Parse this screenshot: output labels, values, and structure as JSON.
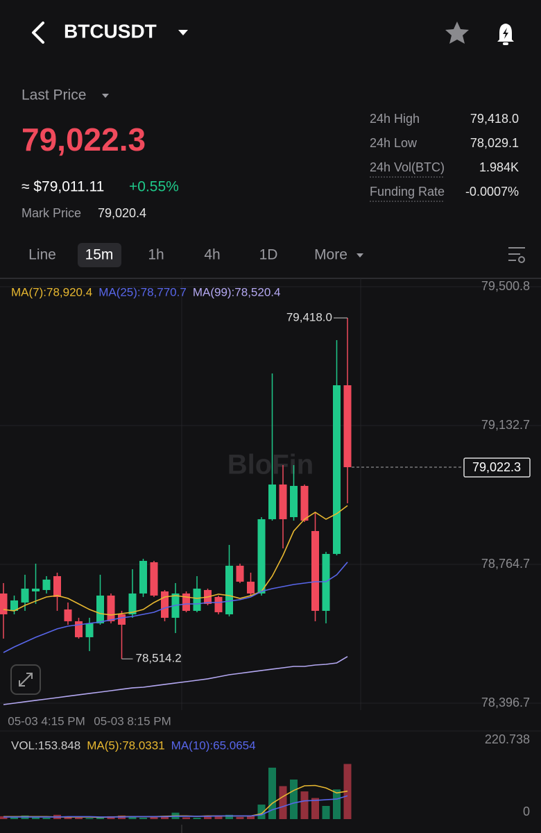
{
  "header": {
    "symbol": "BTCUSDT"
  },
  "ticker": {
    "label": "Last Price",
    "price": "79,022.3",
    "approx": "≈ $79,011.11",
    "change": "+0.55%",
    "mark_label": "Mark Price",
    "mark_price": "79,020.4"
  },
  "stats": [
    {
      "label": "24h High",
      "value": "79,418.0"
    },
    {
      "label": "24h Low",
      "value": "78,029.1"
    },
    {
      "label": "24h Vol(BTC)",
      "value": "1.984K"
    },
    {
      "label": "Funding Rate",
      "value": "-0.0007%"
    }
  ],
  "timeframes": [
    "Line",
    "15m",
    "1h",
    "4h",
    "1D",
    "More"
  ],
  "selected_timeframe": 1,
  "watermark": "BloFin",
  "chart_data": [
    {
      "type": "candlestick",
      "categories": [
        null,
        null,
        null,
        null,
        "05-03 4:15 PM",
        null,
        null,
        null,
        null,
        null,
        null,
        null,
        "05-03 8:15 PM",
        null,
        null,
        null,
        null,
        null,
        null,
        null,
        null,
        null,
        null,
        null,
        null,
        null,
        null,
        null,
        null,
        null,
        null,
        null,
        null
      ],
      "open": [
        78687.5,
        78641.5,
        78663.6,
        78693.0,
        78696.7,
        78733.5,
        78645.2,
        78613.9,
        78571.6,
        78608.4,
        78682.0,
        78632.3,
        78632.3,
        78687.5,
        78770.3,
        78693.0,
        78623.1,
        78687.5,
        78641.5,
        78696.7,
        78678.3,
        78632.3,
        78761.1,
        78718.8,
        78687.5,
        78884.4,
        78976.4,
        78889.9,
        78972.7,
        78853.1,
        78641.5,
        78792.4,
        79239.5
      ],
      "high": [
        78715.1,
        78682.0,
        78737.2,
        78766.6,
        78733.5,
        78742.7,
        78663.6,
        78623.1,
        78623.1,
        78737.2,
        78687.5,
        78641.5,
        78751.9,
        78779.5,
        78774.0,
        78696.7,
        78715.1,
        78693.0,
        78733.5,
        78700.4,
        78682.0,
        78816.3,
        78766.6,
        78742.7,
        78889.9,
        79270.8,
        79027.9,
        79027.9,
        78976.4,
        78902.8,
        78797.9,
        79359.1,
        79418.0
      ],
      "low": [
        78567.9,
        78632.3,
        78641.5,
        78659.9,
        78687.5,
        78641.5,
        78604.7,
        78567.9,
        78534.8,
        78604.7,
        78608.4,
        78514.2,
        78623.1,
        78678.3,
        78678.3,
        78613.9,
        78582.6,
        78637.8,
        78637.8,
        78656.2,
        78632.3,
        78626.8,
        78715.1,
        78682.0,
        78682.0,
        78880.7,
        78807.1,
        78880.7,
        78877.0,
        78613.9,
        78608.4,
        78788.7,
        78926.7
      ],
      "close": [
        78632.3,
        78669.1,
        78700.4,
        78700.4,
        78724.3,
        78678.3,
        78613.9,
        78571.6,
        78608.4,
        78682.0,
        78613.9,
        78604.7,
        78687.5,
        78774.0,
        78682.0,
        78623.1,
        78687.5,
        78641.5,
        78700.4,
        78659.9,
        78637.8,
        78761.1,
        78718.8,
        78687.5,
        78884.4,
        78976.4,
        78884.4,
        78972.7,
        78880.7,
        78641.5,
        78792.4,
        79239.5,
        79022.3
      ],
      "up_color": "#1fc98a",
      "down_color": "#f04a5c",
      "series": [
        {
          "name": "MA(7):78,920.4",
          "color": "#e8b830",
          "values": [
            78645.2,
            78641.5,
            78656.2,
            78667.3,
            78678.3,
            78682.0,
            78674.6,
            78659.9,
            78645.2,
            78634.2,
            78630.5,
            78634.2,
            78637.8,
            78645.2,
            78663.6,
            78678.3,
            78682.0,
            78678.3,
            78674.6,
            78678.3,
            78685.7,
            78682.0,
            78674.6,
            78682.0,
            78693.0,
            78733.5,
            78788.7,
            78853.1,
            78884.4,
            78902.8,
            78884.4,
            78899.1,
            78920.4
          ]
        },
        {
          "name": "MA(25):78,770.7",
          "color": "#5866ea",
          "values": [
            78531.1,
            78545.8,
            78558.7,
            78571.6,
            78582.6,
            78593.7,
            78601.0,
            78604.7,
            78608.4,
            78612.1,
            78617.6,
            78623.1,
            78626.8,
            78632.3,
            78637.8,
            78648.9,
            78656.2,
            78659.9,
            78659.9,
            78663.6,
            78663.6,
            78667.3,
            78671.0,
            78678.3,
            78693.0,
            78700.4,
            78705.9,
            78711.4,
            78715.1,
            78718.8,
            78718.8,
            78737.2,
            78770.7
          ]
        },
        {
          "name": "MA(99):78,520.4",
          "color": "#b4a8f2",
          "values": [
            78393.1,
            78396.7,
            78400.5,
            78404.2,
            78407.8,
            78411.5,
            78415.2,
            78418.9,
            78422.6,
            78426.2,
            78429.9,
            78433.6,
            78437.3,
            78439.1,
            78442.8,
            78446.5,
            78450.2,
            78453.8,
            78457.5,
            78461.2,
            78466.7,
            78472.2,
            78475.9,
            78479.6,
            78483.3,
            78487.0,
            78490.6,
            78494.3,
            78494.3,
            78498.0,
            78499.8,
            78503.5,
            78520.4
          ]
        }
      ],
      "ylim": [
        78396.7,
        79500.8
      ],
      "yticks": [
        {
          "value": 78396.7,
          "label": "78,396.7"
        },
        {
          "value": 78764.7,
          "label": "78,764.7"
        },
        {
          "value": 79132.7,
          "label": "79,132.7"
        },
        {
          "value": 79500.8,
          "label": "79,500.8"
        }
      ],
      "grid": true,
      "annotations": [
        {
          "value": 79418.0,
          "label": "79,418.0"
        },
        {
          "value": 78514.2,
          "label": "78,514.2"
        }
      ],
      "last_price": {
        "value": 79022.3,
        "label": "79,022.3"
      }
    },
    {
      "type": "bar",
      "title": "VOL:153.848",
      "values": [
        8,
        5,
        10,
        6,
        4,
        12,
        6,
        4,
        3,
        5,
        8,
        10,
        6,
        4,
        6,
        9,
        18,
        5,
        4,
        10,
        8,
        12,
        6,
        9,
        40.5,
        143.5,
        92,
        110.4,
        77.3,
        58.9,
        36.8,
        82.8,
        153.848
      ],
      "up_color": "#137a55",
      "down_color": "#93303c",
      "series": [
        {
          "name": "MA(5):78.0331",
          "color": "#e8b830",
          "values": [
            7,
            7,
            7,
            7,
            7,
            6,
            6,
            6,
            6,
            5,
            6,
            7,
            7,
            7,
            7,
            8,
            9,
            9,
            8,
            9,
            9,
            9,
            9,
            9,
            15,
            44,
            63,
            80,
            93,
            94,
            87,
            73,
            78.0331
          ]
        },
        {
          "name": "MA(10):65.0654",
          "color": "#5866ea",
          "values": [
            6,
            6,
            6,
            6,
            6,
            6,
            7,
            7,
            7,
            6,
            6,
            6,
            7,
            7,
            7,
            7,
            8,
            8,
            8,
            8,
            9,
            9,
            9,
            9,
            12,
            26,
            35,
            45,
            51,
            52,
            54,
            56,
            65.0654
          ]
        }
      ],
      "ylim": [
        0,
        220.738
      ],
      "yticks": [
        0,
        220.738
      ]
    }
  ]
}
